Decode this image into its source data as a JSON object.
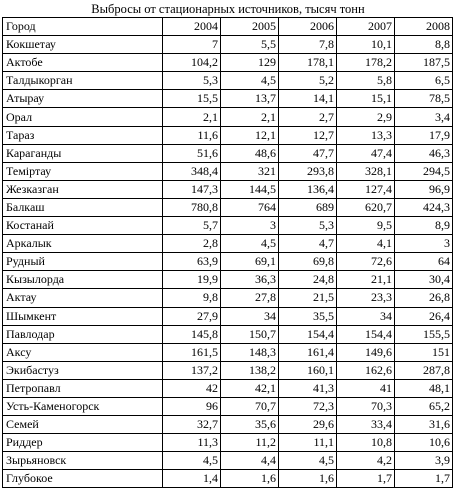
{
  "title": "Выбросы от стационарных источников, тысяч тонн",
  "table": {
    "header": [
      "Город",
      "2004",
      "2005",
      "2006",
      "2007",
      "2008"
    ],
    "rows": [
      [
        "Кокшетау",
        "7",
        "5,5",
        "7,8",
        "10,1",
        "8,8"
      ],
      [
        "Актобе",
        "104,2",
        "129",
        "178,1",
        "178,2",
        "187,5"
      ],
      [
        "Талдыкорган",
        "5,3",
        "4,5",
        "5,2",
        "5,8",
        "6,5"
      ],
      [
        "Атырау",
        "15,5",
        "13,7",
        "14,1",
        "15,1",
        "78,5"
      ],
      [
        "Орал",
        "2,1",
        "2,1",
        "2,7",
        "2,9",
        "3,4"
      ],
      [
        "Тараз",
        "11,6",
        "12,1",
        "12,7",
        "13,3",
        "17,9"
      ],
      [
        "Караганды",
        "51,6",
        "48,6",
        "47,7",
        "47,4",
        "46,3"
      ],
      [
        "Темiртау",
        "348,4",
        "321",
        "293,8",
        "328,1",
        "294,5"
      ],
      [
        "Жезказган",
        "147,3",
        "144,5",
        "136,4",
        "127,4",
        "96,9"
      ],
      [
        "Балкаш",
        "780,8",
        "764",
        "689",
        "620,7",
        "424,3"
      ],
      [
        "Костанай",
        "5,7",
        "3",
        "5,3",
        "9,5",
        "8,9"
      ],
      [
        "Аркалык",
        "2,8",
        "4,5",
        "4,7",
        "4,1",
        "3"
      ],
      [
        "Рудный",
        "63,9",
        "69,1",
        "69,8",
        "72,6",
        "64"
      ],
      [
        "Кызылорда",
        "19,9",
        "36,3",
        "24,8",
        "21,1",
        "30,4"
      ],
      [
        "Актау",
        "9,8",
        "27,8",
        "21,5",
        "23,3",
        "26,8"
      ],
      [
        "Шымкент",
        "27,9",
        "34",
        "35,5",
        "34",
        "26,4"
      ],
      [
        "Павлодар",
        "145,8",
        "150,7",
        "154,4",
        "154,4",
        "155,5"
      ],
      [
        "Аксу",
        "161,5",
        "148,3",
        "161,4",
        "149,6",
        "151"
      ],
      [
        "Экибастуз",
        "137,2",
        "138,2",
        "160,1",
        "162,6",
        "287,8"
      ],
      [
        "Петропавл",
        "42",
        "42,1",
        "41,3",
        "41",
        "48,1"
      ],
      [
        "Усть-Каменогорск",
        "96",
        "70,7",
        "72,3",
        "70,3",
        "65,2"
      ],
      [
        "Семей",
        "32,7",
        "35,6",
        "29,6",
        "33,4",
        "31,6"
      ],
      [
        "Риддер",
        "11,3",
        "11,2",
        "11,1",
        "10,8",
        "10,6"
      ],
      [
        "Зырьяновск",
        "4,5",
        "4,4",
        "4,5",
        "4,2",
        "3,9"
      ],
      [
        "Глубокое",
        "1,4",
        "1,6",
        "1,6",
        "1,7",
        "1,7"
      ]
    ]
  }
}
